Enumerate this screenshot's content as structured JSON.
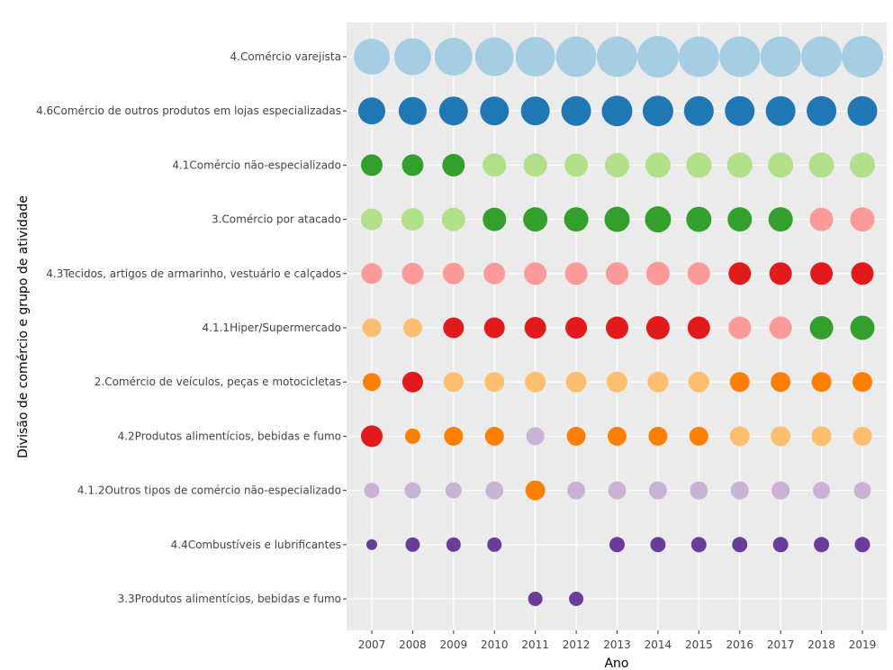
{
  "chart_data": {
    "type": "scatter",
    "xlabel": "Ano",
    "ylabel": "Divisão de comércio e grupo de atividade",
    "x": [
      2007,
      2008,
      2009,
      2010,
      2011,
      2012,
      2013,
      2014,
      2015,
      2016,
      2017,
      2018,
      2019
    ],
    "categories": [
      "4.Comércio varejista",
      "4.6Comércio de outros produtos em lojas especializadas",
      "4.1Comércio não-especializado",
      "3.Comércio por atacado",
      "4.3Tecidos, artigos de armarinho, vestuário e calçados",
      "4.1.1Hiper/Supermercado",
      "2.Comércio de veículos, peças e motocicletas",
      "4.2Produtos alimentícios, bebidas e fumo",
      "4.1.2Outros tipos de comércio não-especializado",
      "4.4Combustíveis e lubrificantes",
      "3.3Produtos alimentícios, bebidas e fumo"
    ],
    "rank_colors": [
      "#a6cee3",
      "#1f78b4",
      "#b2df8a",
      "#33a02c",
      "#fb9a99",
      "#e31a1c",
      "#fdbf6f",
      "#ff7f00",
      "#cab2d6",
      "#6a3d9a"
    ],
    "series": [
      {
        "ranks": [
          1,
          1,
          1,
          1,
          1,
          1,
          1,
          1,
          1,
          1,
          1,
          1,
          1
        ],
        "sizes": [
          40,
          41,
          42,
          43,
          44,
          45,
          45,
          46,
          45,
          45,
          45,
          45,
          46
        ]
      },
      {
        "ranks": [
          2,
          2,
          2,
          2,
          2,
          2,
          2,
          2,
          2,
          2,
          2,
          2,
          2
        ],
        "sizes": [
          30,
          31,
          32,
          32,
          32,
          33,
          34,
          34,
          33,
          33,
          33,
          33,
          33
        ]
      },
      {
        "ranks": [
          4,
          4,
          4,
          3,
          3,
          3,
          3,
          3,
          3,
          3,
          3,
          3,
          3
        ],
        "sizes": [
          24,
          24,
          25,
          26,
          26,
          26,
          27,
          28,
          28,
          28,
          28,
          28,
          28
        ]
      },
      {
        "ranks": [
          3,
          3,
          3,
          4,
          4,
          4,
          4,
          4,
          4,
          4,
          4,
          5,
          5
        ],
        "sizes": [
          24,
          25,
          26,
          26,
          27,
          27,
          28,
          29,
          28,
          27,
          27,
          26,
          27
        ]
      },
      {
        "ranks": [
          5,
          5,
          5,
          5,
          5,
          5,
          5,
          5,
          5,
          6,
          6,
          6,
          6
        ],
        "sizes": [
          23,
          24,
          24,
          24,
          25,
          25,
          25,
          26,
          25,
          25,
          25,
          25,
          25
        ]
      },
      {
        "ranks": [
          7,
          7,
          6,
          6,
          6,
          6,
          6,
          6,
          6,
          5,
          5,
          4,
          4
        ],
        "sizes": [
          21,
          21,
          23,
          23,
          24,
          24,
          25,
          26,
          25,
          25,
          25,
          26,
          27
        ]
      },
      {
        "ranks": [
          8,
          6,
          7,
          7,
          7,
          7,
          7,
          7,
          7,
          8,
          8,
          8,
          8
        ],
        "sizes": [
          20,
          23,
          22,
          22,
          23,
          23,
          23,
          23,
          23,
          22,
          22,
          22,
          22
        ]
      },
      {
        "ranks": [
          6,
          8,
          8,
          8,
          9,
          8,
          8,
          8,
          8,
          7,
          7,
          7,
          7
        ],
        "sizes": [
          24,
          17,
          21,
          21,
          20,
          21,
          21,
          21,
          21,
          22,
          22,
          22,
          21
        ]
      },
      {
        "ranks": [
          9,
          9,
          9,
          9,
          8,
          9,
          9,
          9,
          9,
          9,
          9,
          9,
          9
        ],
        "sizes": [
          17,
          18,
          18,
          20,
          22,
          20,
          20,
          20,
          20,
          20,
          20,
          19,
          19
        ]
      },
      {
        "ranks": [
          10,
          10,
          10,
          10,
          null,
          null,
          10,
          10,
          10,
          10,
          10,
          10,
          10
        ],
        "sizes": [
          12,
          16,
          16,
          16,
          null,
          null,
          17,
          17,
          17,
          17,
          17,
          17,
          17
        ]
      },
      {
        "ranks": [
          null,
          null,
          null,
          null,
          10,
          10,
          null,
          null,
          null,
          null,
          null,
          null,
          null
        ],
        "sizes": [
          null,
          null,
          null,
          null,
          16,
          16,
          null,
          null,
          null,
          null,
          null,
          null,
          null
        ]
      }
    ]
  }
}
